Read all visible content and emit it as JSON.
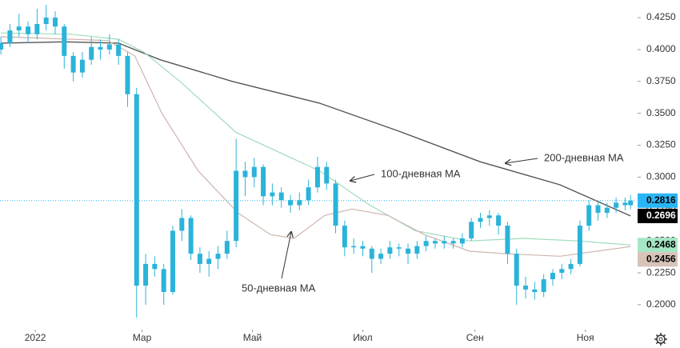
{
  "chart_data": {
    "type": "candlestick",
    "xlim": [
      -19.5,
      332
    ],
    "xticks": [
      {
        "value": 0,
        "label": "2022"
      },
      {
        "value": 59,
        "label": "Мар"
      },
      {
        "value": 120,
        "label": "Май"
      },
      {
        "value": 181,
        "label": "Июл"
      },
      {
        "value": 243,
        "label": "Сен"
      },
      {
        "value": 304,
        "label": "Ноя"
      }
    ],
    "ylim": [
      0.1818,
      0.4388
    ],
    "yticks": [
      {
        "value": 0.425,
        "label": "0.4250"
      },
      {
        "value": 0.4,
        "label": "0.4000"
      },
      {
        "value": 0.375,
        "label": "0.3750"
      },
      {
        "value": 0.35,
        "label": "0.3500"
      },
      {
        "value": 0.325,
        "label": "0.3250"
      },
      {
        "value": 0.3,
        "label": "0.3000"
      },
      {
        "value": 0.275,
        "label": "0.2750"
      },
      {
        "value": 0.25,
        "label": "0.2500"
      },
      {
        "value": 0.225,
        "label": "0.2250"
      },
      {
        "value": 0.2,
        "label": "0.2000"
      }
    ],
    "candles": {
      "color": "#2bb3d9",
      "x": [
        -19,
        -14,
        -9,
        -4,
        1,
        6,
        11,
        16,
        21,
        26,
        31,
        36,
        41,
        46,
        51,
        56,
        61,
        66,
        71,
        76,
        81,
        86,
        91,
        96,
        101,
        106,
        111,
        116,
        121,
        126,
        131,
        136,
        141,
        146,
        151,
        156,
        161,
        166,
        171,
        176,
        181,
        186,
        191,
        196,
        201,
        206,
        211,
        216,
        221,
        226,
        231,
        236,
        241,
        246,
        251,
        256,
        261,
        266,
        271,
        276,
        281,
        286,
        291,
        296,
        301,
        306,
        311,
        316,
        321,
        326,
        329
      ],
      "ohlc": [
        [
          0.4,
          0.41,
          0.396,
          0.405
        ],
        [
          0.405,
          0.42,
          0.402,
          0.415
        ],
        [
          0.415,
          0.428,
          0.41,
          0.418
        ],
        [
          0.418,
          0.422,
          0.405,
          0.412
        ],
        [
          0.412,
          0.432,
          0.408,
          0.42
        ],
        [
          0.42,
          0.435,
          0.415,
          0.425
        ],
        [
          0.425,
          0.43,
          0.412,
          0.418
        ],
        [
          0.418,
          0.42,
          0.385,
          0.395
        ],
        [
          0.395,
          0.398,
          0.375,
          0.382
        ],
        [
          0.382,
          0.398,
          0.378,
          0.392
        ],
        [
          0.392,
          0.41,
          0.388,
          0.402
        ],
        [
          0.402,
          0.408,
          0.392,
          0.4
        ],
        [
          0.4,
          0.412,
          0.396,
          0.404
        ],
        [
          0.404,
          0.408,
          0.388,
          0.395
        ],
        [
          0.395,
          0.398,
          0.355,
          0.365
        ],
        [
          0.365,
          0.37,
          0.19,
          0.215
        ],
        [
          0.215,
          0.24,
          0.2,
          0.232
        ],
        [
          0.232,
          0.238,
          0.222,
          0.228
        ],
        [
          0.228,
          0.232,
          0.2,
          0.21
        ],
        [
          0.21,
          0.262,
          0.208,
          0.258
        ],
        [
          0.258,
          0.275,
          0.25,
          0.268
        ],
        [
          0.268,
          0.27,
          0.235,
          0.24
        ],
        [
          0.24,
          0.245,
          0.225,
          0.232
        ],
        [
          0.232,
          0.242,
          0.222,
          0.236
        ],
        [
          0.236,
          0.246,
          0.228,
          0.24
        ],
        [
          0.24,
          0.258,
          0.236,
          0.25
        ],
        [
          0.25,
          0.33,
          0.245,
          0.305
        ],
        [
          0.305,
          0.312,
          0.285,
          0.3
        ],
        [
          0.3,
          0.315,
          0.292,
          0.308
        ],
        [
          0.308,
          0.31,
          0.278,
          0.285
        ],
        [
          0.285,
          0.295,
          0.278,
          0.288
        ],
        [
          0.288,
          0.292,
          0.276,
          0.282
        ],
        [
          0.282,
          0.286,
          0.272,
          0.278
        ],
        [
          0.278,
          0.288,
          0.274,
          0.282
        ],
        [
          0.282,
          0.298,
          0.278,
          0.292
        ],
        [
          0.292,
          0.316,
          0.288,
          0.308
        ],
        [
          0.308,
          0.312,
          0.29,
          0.295
        ],
        [
          0.295,
          0.298,
          0.256,
          0.262
        ],
        [
          0.262,
          0.266,
          0.238,
          0.245
        ],
        [
          0.245,
          0.252,
          0.24,
          0.246
        ],
        [
          0.246,
          0.25,
          0.238,
          0.244
        ],
        [
          0.244,
          0.246,
          0.225,
          0.236
        ],
        [
          0.236,
          0.244,
          0.232,
          0.24
        ],
        [
          0.24,
          0.25,
          0.236,
          0.245
        ],
        [
          0.245,
          0.248,
          0.238,
          0.244
        ],
        [
          0.244,
          0.248,
          0.232,
          0.24
        ],
        [
          0.24,
          0.25,
          0.236,
          0.246
        ],
        [
          0.246,
          0.254,
          0.242,
          0.25
        ],
        [
          0.25,
          0.252,
          0.244,
          0.248
        ],
        [
          0.248,
          0.254,
          0.244,
          0.25
        ],
        [
          0.25,
          0.252,
          0.244,
          0.248
        ],
        [
          0.248,
          0.256,
          0.245,
          0.252
        ],
        [
          0.252,
          0.268,
          0.25,
          0.265
        ],
        [
          0.265,
          0.272,
          0.26,
          0.268
        ],
        [
          0.268,
          0.274,
          0.262,
          0.27
        ],
        [
          0.27,
          0.272,
          0.255,
          0.262
        ],
        [
          0.262,
          0.265,
          0.232,
          0.24
        ],
        [
          0.24,
          0.244,
          0.2,
          0.215
        ],
        [
          0.215,
          0.222,
          0.205,
          0.212
        ],
        [
          0.212,
          0.218,
          0.204,
          0.21
        ],
        [
          0.21,
          0.224,
          0.206,
          0.22
        ],
        [
          0.22,
          0.228,
          0.215,
          0.225
        ],
        [
          0.225,
          0.232,
          0.22,
          0.228
        ],
        [
          0.228,
          0.236,
          0.224,
          0.232
        ],
        [
          0.232,
          0.266,
          0.23,
          0.262
        ],
        [
          0.262,
          0.282,
          0.258,
          0.278
        ],
        [
          0.278,
          0.28,
          0.266,
          0.272
        ],
        [
          0.272,
          0.28,
          0.268,
          0.276
        ],
        [
          0.276,
          0.284,
          0.272,
          0.28
        ],
        [
          0.28,
          0.284,
          0.274,
          0.278
        ],
        [
          0.278,
          0.286,
          0.275,
          0.2816
        ]
      ]
    },
    "moving_averages": [
      {
        "label": "200-дневная MA",
        "color": "#555555",
        "x": [
          -19,
          16,
          46,
          69,
          109,
          157,
          201,
          246,
          290,
          329
        ],
        "values": [
          0.405,
          0.406,
          0.405,
          0.392,
          0.375,
          0.358,
          0.336,
          0.312,
          0.294,
          0.2696
        ]
      },
      {
        "label": "100-дневная MA",
        "color": "#9fdcbc",
        "x": [
          -19,
          20,
          46,
          60,
          80,
          111,
          157,
          185,
          210,
          240,
          270,
          300,
          329
        ],
        "values": [
          0.413,
          0.412,
          0.408,
          0.398,
          0.375,
          0.335,
          0.305,
          0.278,
          0.258,
          0.25,
          0.252,
          0.25,
          0.2468
        ]
      },
      {
        "label": "50-дневная MA",
        "color": "#cdb4ad",
        "x": [
          -19,
          40,
          55,
          70,
          90,
          112,
          130,
          143,
          160,
          175,
          195,
          215,
          240,
          260,
          290,
          329
        ],
        "values": [
          0.41,
          0.407,
          0.395,
          0.35,
          0.305,
          0.272,
          0.255,
          0.252,
          0.27,
          0.275,
          0.27,
          0.255,
          0.242,
          0.24,
          0.238,
          0.2456
        ]
      }
    ],
    "price_markers": [
      {
        "value": 0.2816,
        "color": "#29b6f6",
        "text_color": "#000000"
      },
      {
        "value": 0.2696,
        "color": "#000000",
        "text_color": "#ffffff"
      },
      {
        "value": 0.2468,
        "color": "#a5e6c4",
        "text_color": "#000000"
      },
      {
        "value": 0.2456,
        "color": "#d8c3b8",
        "text_color": "#000000"
      }
    ]
  }
}
